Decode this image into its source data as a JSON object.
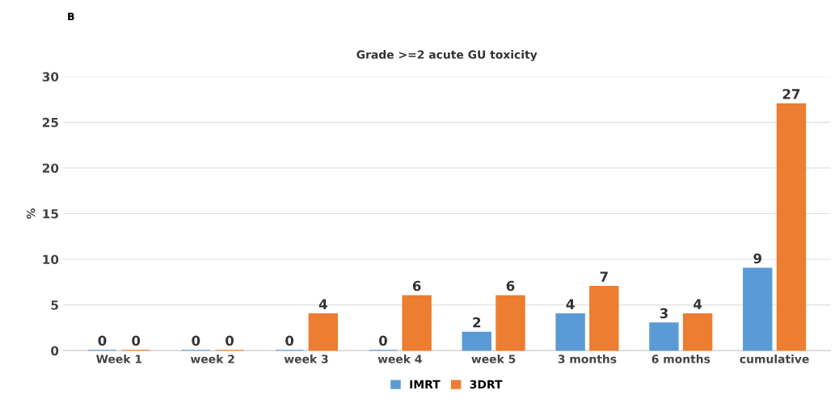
{
  "chart_data": {
    "type": "bar",
    "title": "Grade >=2 acute GU toxicity",
    "ylabel": "%",
    "annotations": [
      "B"
    ],
    "categories": [
      "Week 1",
      "week 2",
      "week 3",
      "week 4",
      "week 5",
      "3 months",
      "6 months",
      "cumulative"
    ],
    "series": [
      {
        "name": "IMRT",
        "color": "#5b9bd5",
        "values": [
          0,
          0,
          0,
          0,
          2,
          4,
          3,
          9
        ]
      },
      {
        "name": "3DRT",
        "color": "#ed7d31",
        "values": [
          0,
          0,
          4,
          6,
          6,
          7,
          4,
          27
        ]
      }
    ],
    "ylim": [
      0,
      30
    ],
    "yticks": [
      0,
      5,
      10,
      15,
      20,
      25,
      30
    ],
    "grid": "y",
    "legend": "bottom",
    "data_labels": true
  }
}
